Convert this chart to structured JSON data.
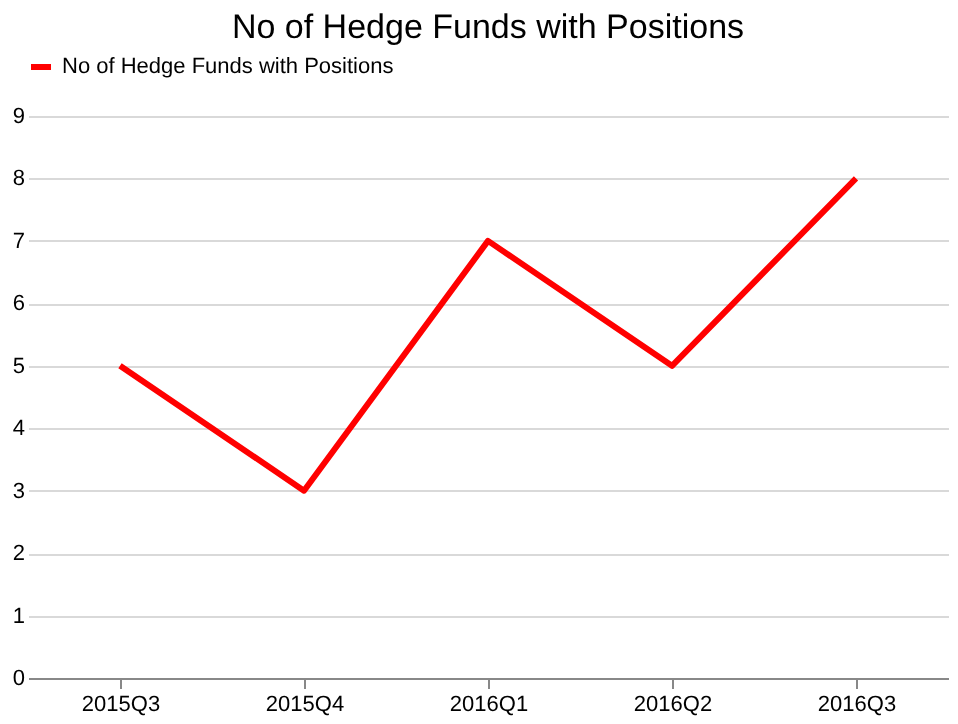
{
  "chart_data": {
    "type": "line",
    "title": "No of Hedge Funds with Positions",
    "categories": [
      "2015Q3",
      "2015Q4",
      "2016Q1",
      "2016Q2",
      "2016Q3"
    ],
    "series": [
      {
        "name": "No of Hedge Funds with Positions",
        "color": "#ff0000",
        "values": [
          5,
          3,
          7,
          5,
          8
        ]
      }
    ],
    "ylim": [
      0,
      9
    ],
    "yticks": [
      0,
      1,
      2,
      3,
      4,
      5,
      6,
      7,
      8,
      9
    ],
    "grid": "y",
    "legend": "top",
    "marker": "none",
    "line_style": "solid"
  }
}
